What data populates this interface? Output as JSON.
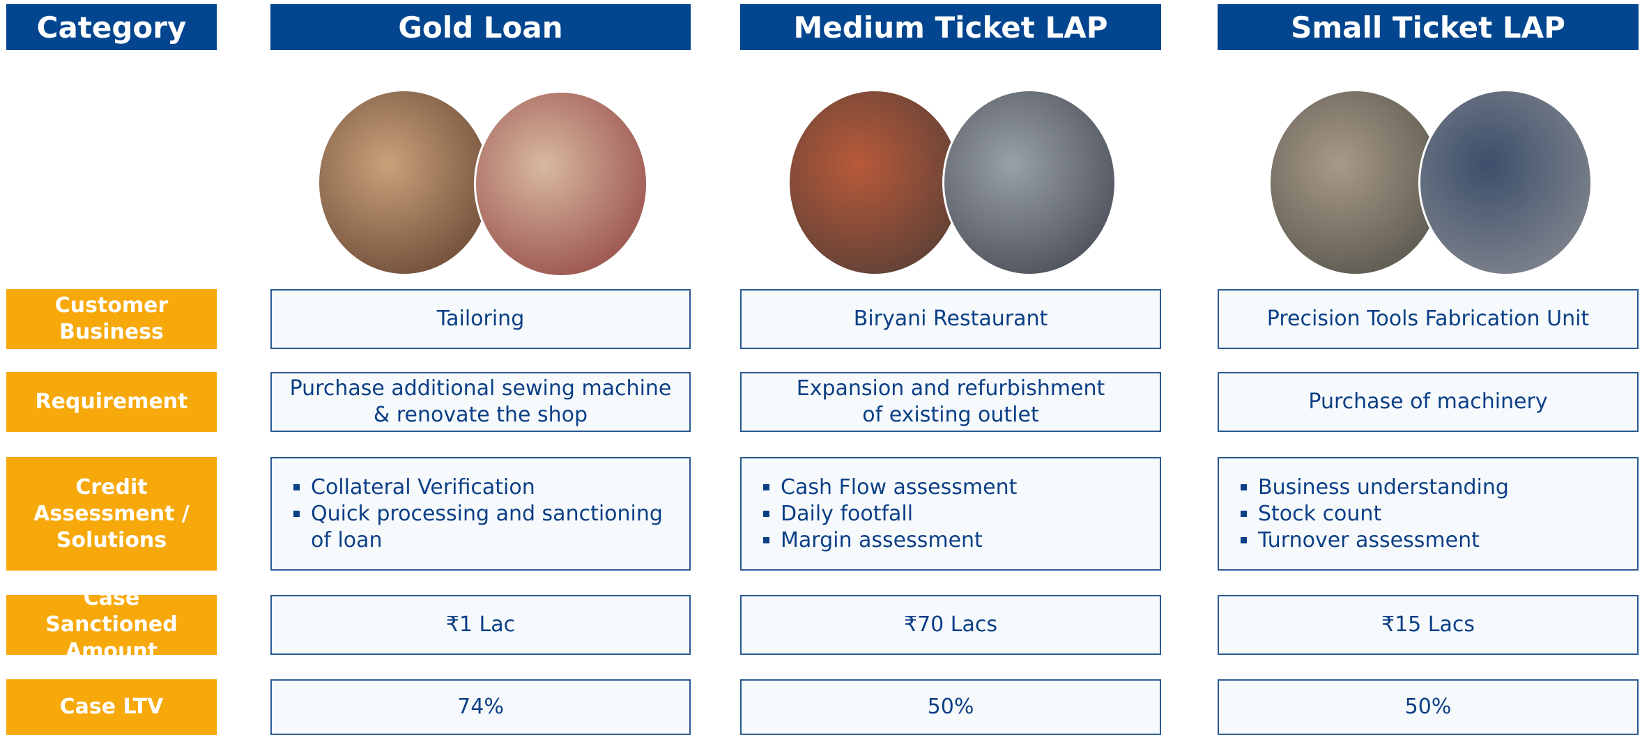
{
  "header": [
    "Category",
    "Gold Loan",
    "Medium Ticket LAP",
    "Small Ticket LAP"
  ],
  "rows": [
    {
      "label": "Customer Business",
      "cells": [
        "Tailoring",
        "Biryani Restaurant",
        "Precision Tools Fabrication Unit"
      ]
    },
    {
      "label": "Requirement",
      "cells": [
        [
          "Purchase additional sewing machine & renovate the shop"
        ],
        [
          "Expansion and refurbishment",
          "of existing outlet"
        ],
        [
          "Purchase of machinery"
        ]
      ]
    },
    {
      "label": "Credit Assessment / Solutions",
      "bullets": [
        [
          "Collateral Verification",
          "Quick processing and sanctioning of loan"
        ],
        [
          "Cash Flow assessment",
          "Daily footfall",
          "Margin assessment"
        ],
        [
          "Business understanding",
          "Stock count",
          "Turnover assessment"
        ]
      ]
    },
    {
      "label": "Case Sanctioned Amount",
      "cells": [
        "₹1 Lac",
        "₹70 Lacs",
        "₹15 Lacs"
      ]
    },
    {
      "label": "Case LTV",
      "cells": [
        "74%",
        "50%",
        "50%"
      ]
    }
  ]
}
